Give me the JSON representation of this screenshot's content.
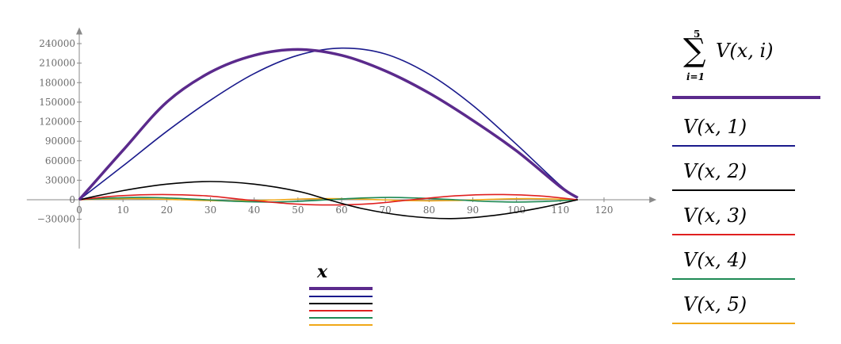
{
  "chart_data": {
    "type": "line",
    "x_ticks": [
      0,
      10,
      20,
      30,
      40,
      50,
      60,
      70,
      80,
      90,
      100,
      110,
      120
    ],
    "y_ticks": [
      -30000,
      0,
      30000,
      60000,
      90000,
      120000,
      150000,
      180000,
      210000,
      240000
    ],
    "y_tick_labels": [
      "−30000",
      "0",
      "30000",
      "60000",
      "90000",
      "120000",
      "150000",
      "180000",
      "210000",
      "240000"
    ],
    "xlim": [
      -12,
      132
    ],
    "ylim": [
      -75000,
      265000
    ],
    "xlabel": "x",
    "grid": false,
    "legend_position": "right",
    "series": [
      {
        "name_parts": {
          "top": "5",
          "sign": "∑",
          "bottom": "i=1",
          "expr": "V(x, i)"
        },
        "color": "#5b2a8c",
        "thick": true,
        "x": [
          0,
          10,
          20,
          30,
          40,
          50,
          60,
          70,
          80,
          90,
          100,
          110,
          114
        ],
        "values": [
          0,
          76000,
          150000,
          196000,
          222000,
          231000,
          222000,
          198000,
          164000,
          122000,
          75000,
          20000,
          3000
        ]
      },
      {
        "name": "V(x, 1)",
        "color": "#1a1a8c",
        "x": [
          0,
          10,
          20,
          30,
          40,
          50,
          60,
          70,
          80,
          90,
          100,
          110,
          114
        ],
        "values": [
          0,
          52000,
          105000,
          153000,
          194000,
          222000,
          233000,
          224000,
          193000,
          145000,
          85000,
          22000,
          3000
        ]
      },
      {
        "name": "V(x, 2)",
        "color": "#000000",
        "x": [
          0,
          10,
          20,
          30,
          40,
          50,
          57,
          65,
          75,
          85,
          95,
          105,
          114
        ],
        "values": [
          0,
          14000,
          24000,
          28000,
          24000,
          13000,
          0,
          -14000,
          -25000,
          -29000,
          -24000,
          -13000,
          0
        ]
      },
      {
        "name": "V(x, 3)",
        "color": "#e02020",
        "x": [
          0,
          9,
          19,
          29,
          38,
          48,
          57,
          67,
          76,
          86,
          95,
          105,
          114
        ],
        "values": [
          0,
          6000,
          8000,
          6000,
          0,
          -6000,
          -8000,
          -6000,
          0,
          6000,
          8000,
          6000,
          0
        ]
      },
      {
        "name": "V(x, 4)",
        "color": "#1f8a55",
        "x": [
          0,
          7,
          14,
          21,
          29,
          36,
          43,
          50,
          57,
          64,
          71,
          78,
          86,
          93,
          100,
          107,
          114
        ],
        "values": [
          0,
          2500,
          3500,
          2500,
          0,
          -2500,
          -3500,
          -2500,
          0,
          2500,
          3500,
          2500,
          0,
          -2500,
          -3500,
          -2500,
          0
        ]
      },
      {
        "name": "V(x, 5)",
        "color": "#f0a818",
        "x": [
          0,
          6,
          11,
          17,
          23,
          29,
          34,
          40,
          46,
          51,
          57,
          63,
          69,
          74,
          80,
          86,
          91,
          97,
          103,
          108,
          114
        ],
        "values": [
          0,
          1200,
          1700,
          1200,
          0,
          -1200,
          -1700,
          -1200,
          0,
          1200,
          1700,
          1200,
          0,
          -1200,
          -1700,
          -1200,
          0,
          1200,
          1700,
          1200,
          0
        ]
      }
    ]
  }
}
